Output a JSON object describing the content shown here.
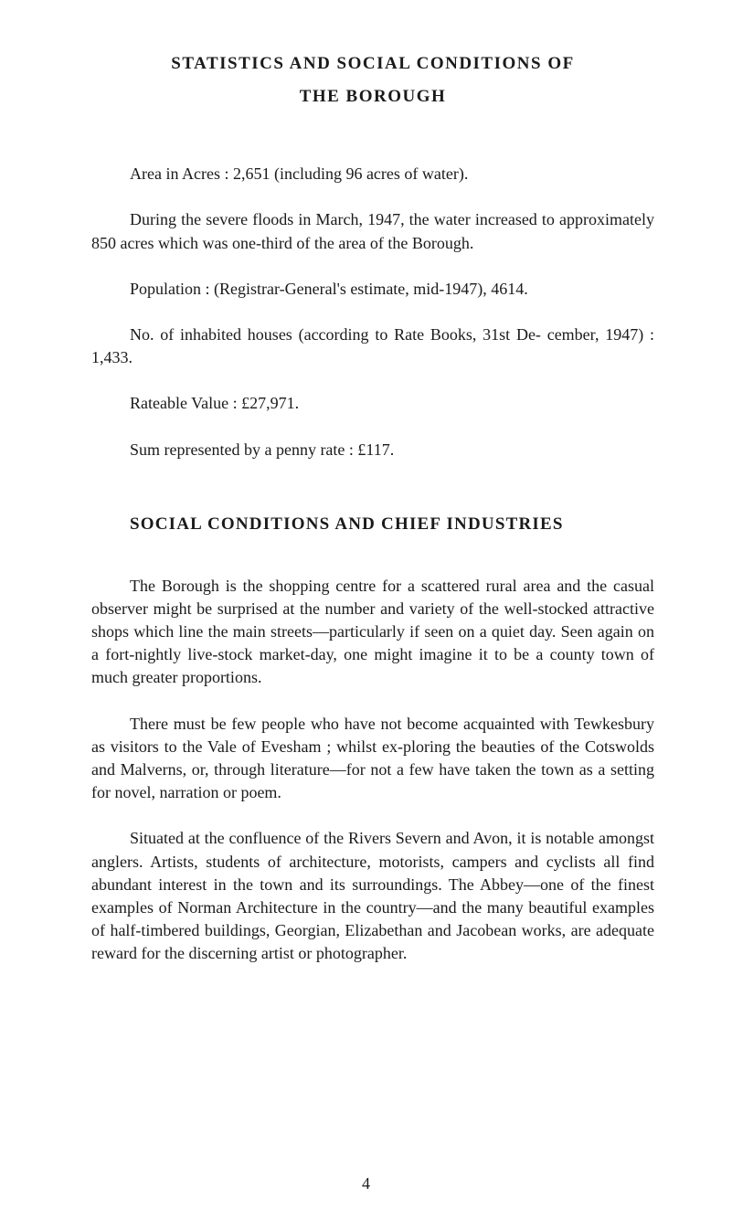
{
  "title": {
    "line1": "STATISTICS AND SOCIAL CONDITIONS OF",
    "line2": "THE BOROUGH"
  },
  "paragraphs": {
    "area": "Area in Acres : 2,651 (including 96 acres of water).",
    "floods": "During the severe floods in March, 1947, the water increased to approximately 850 acres which was one-third of the area of the Borough.",
    "population": "Population : (Registrar-General's estimate, mid-1947), 4614.",
    "houses": "No. of inhabited houses (according to Rate Books, 31st De- cember, 1947) : 1,433.",
    "rateable": "Rateable Value : £27,971.",
    "pennyrate": "Sum represented by a penny rate : £117."
  },
  "section2": {
    "heading": "SOCIAL CONDITIONS AND CHIEF INDUSTRIES",
    "para1": "The Borough is the shopping centre for a scattered rural area and the casual observer might be surprised at the number and variety of the well-stocked attractive shops which line the main streets—particularly if seen on a quiet day. Seen again on a fort-nightly live-stock market-day, one might imagine it to be a county town of much greater proportions.",
    "para2": "There must be few people who have not become acquainted with Tewkesbury as visitors to the Vale of Evesham ; whilst ex-ploring the beauties of the Cotswolds and Malverns, or, through literature—for not a few have taken the town as a setting for novel, narration or poem.",
    "para3": "Situated at the confluence of the Rivers Severn and Avon, it is notable amongst anglers. Artists, students of architecture, motorists, campers and cyclists all find abundant interest in the town and its surroundings. The Abbey—one of the finest examples of Norman Architecture in the country—and the many beautiful examples of half-timbered buildings, Georgian, Elizabethan and Jacobean works, are adequate reward for the discerning artist or photographer."
  },
  "pageNumber": "4"
}
